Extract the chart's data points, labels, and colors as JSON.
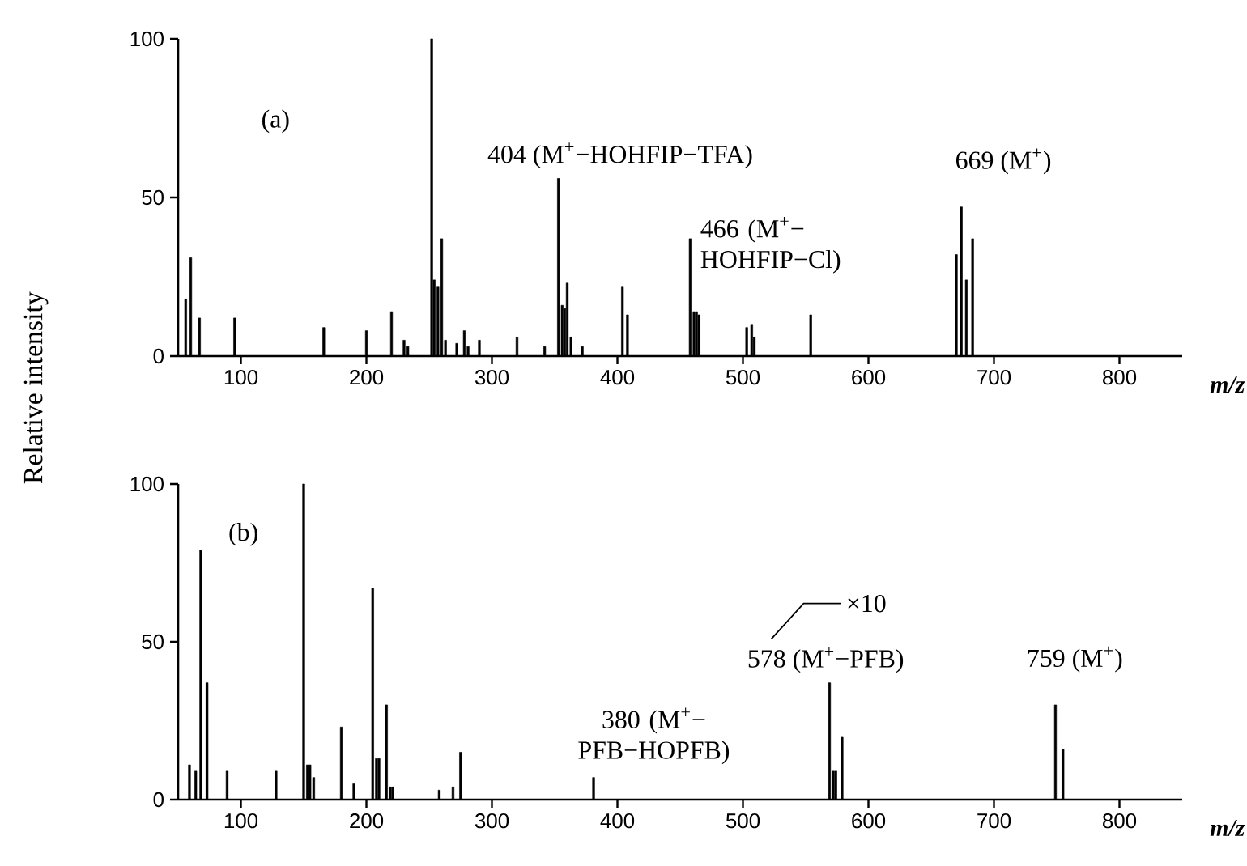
{
  "chart_data": [
    {
      "type": "bar",
      "color": "#000000",
      "ylabel": "Relative intensity",
      "xlabel": "m/z",
      "x": [
        56,
        60,
        67,
        95,
        166,
        200,
        220,
        230,
        233,
        252,
        254,
        257,
        260,
        263,
        272,
        278,
        281,
        290,
        320,
        342,
        353,
        356,
        358,
        360,
        363,
        372,
        404,
        408,
        458,
        461,
        463,
        465,
        503,
        507,
        509,
        554,
        670,
        674,
        678,
        683
      ],
      "values": [
        18,
        31,
        12,
        12,
        9,
        8,
        14,
        5,
        3,
        100,
        24,
        22,
        37,
        5,
        4,
        8,
        3,
        5,
        6,
        3,
        56,
        16,
        15,
        23,
        6,
        3,
        22,
        13,
        37,
        14,
        14,
        13,
        9,
        10,
        6,
        13,
        32,
        47,
        24,
        37
      ],
      "xlim": [
        50,
        850
      ],
      "ylim": [
        0,
        100
      ],
      "xticks": [
        100,
        200,
        300,
        400,
        500,
        600,
        700,
        800
      ],
      "yticks": [
        0,
        50,
        100
      ],
      "annotations": [
        "(a)",
        {
          "text": "404 (M$^{+}$−HOHFIP−TFA)",
          "x": 353,
          "y": 56
        },
        {
          "text": "669 (M$^{+}$)",
          "x": 674,
          "y": 47
        },
        {
          "text": "466 (M$^{+}$− HOHFIP−Cl)",
          "x": 458,
          "y": 37
        }
      ]
    },
    {
      "type": "bar",
      "color": "#000000",
      "xlabel": "m/z",
      "x": [
        59,
        64,
        68,
        73,
        89,
        128,
        150,
        153,
        155,
        158,
        180,
        190,
        205,
        208,
        210,
        216,
        219,
        221,
        258,
        269,
        275,
        381,
        569,
        572,
        574,
        579,
        749,
        755
      ],
      "values": [
        11,
        9,
        79,
        37,
        9,
        9,
        100,
        11,
        11,
        7,
        23,
        5,
        67,
        13,
        13,
        30,
        4,
        4,
        3,
        4,
        15,
        7,
        37,
        9,
        9,
        20,
        30,
        16
      ],
      "xlim": [
        50,
        850
      ],
      "ylim": [
        0,
        100
      ],
      "xticks": [
        100,
        200,
        300,
        400,
        500,
        600,
        700,
        800
      ],
      "yticks": [
        0,
        50,
        100
      ],
      "annotations": [
        "(b)",
        {
          "text": "380 (M$^{+}$− PFB−HOPFB)",
          "x": 381,
          "y": 7
        },
        {
          "text": "578 (M$^{+}$−PFB)",
          "x": 569,
          "y": 37
        },
        {
          "text": "759 (M$^{+}$)",
          "x": 749,
          "y": 30
        },
        "×10"
      ]
    }
  ]
}
